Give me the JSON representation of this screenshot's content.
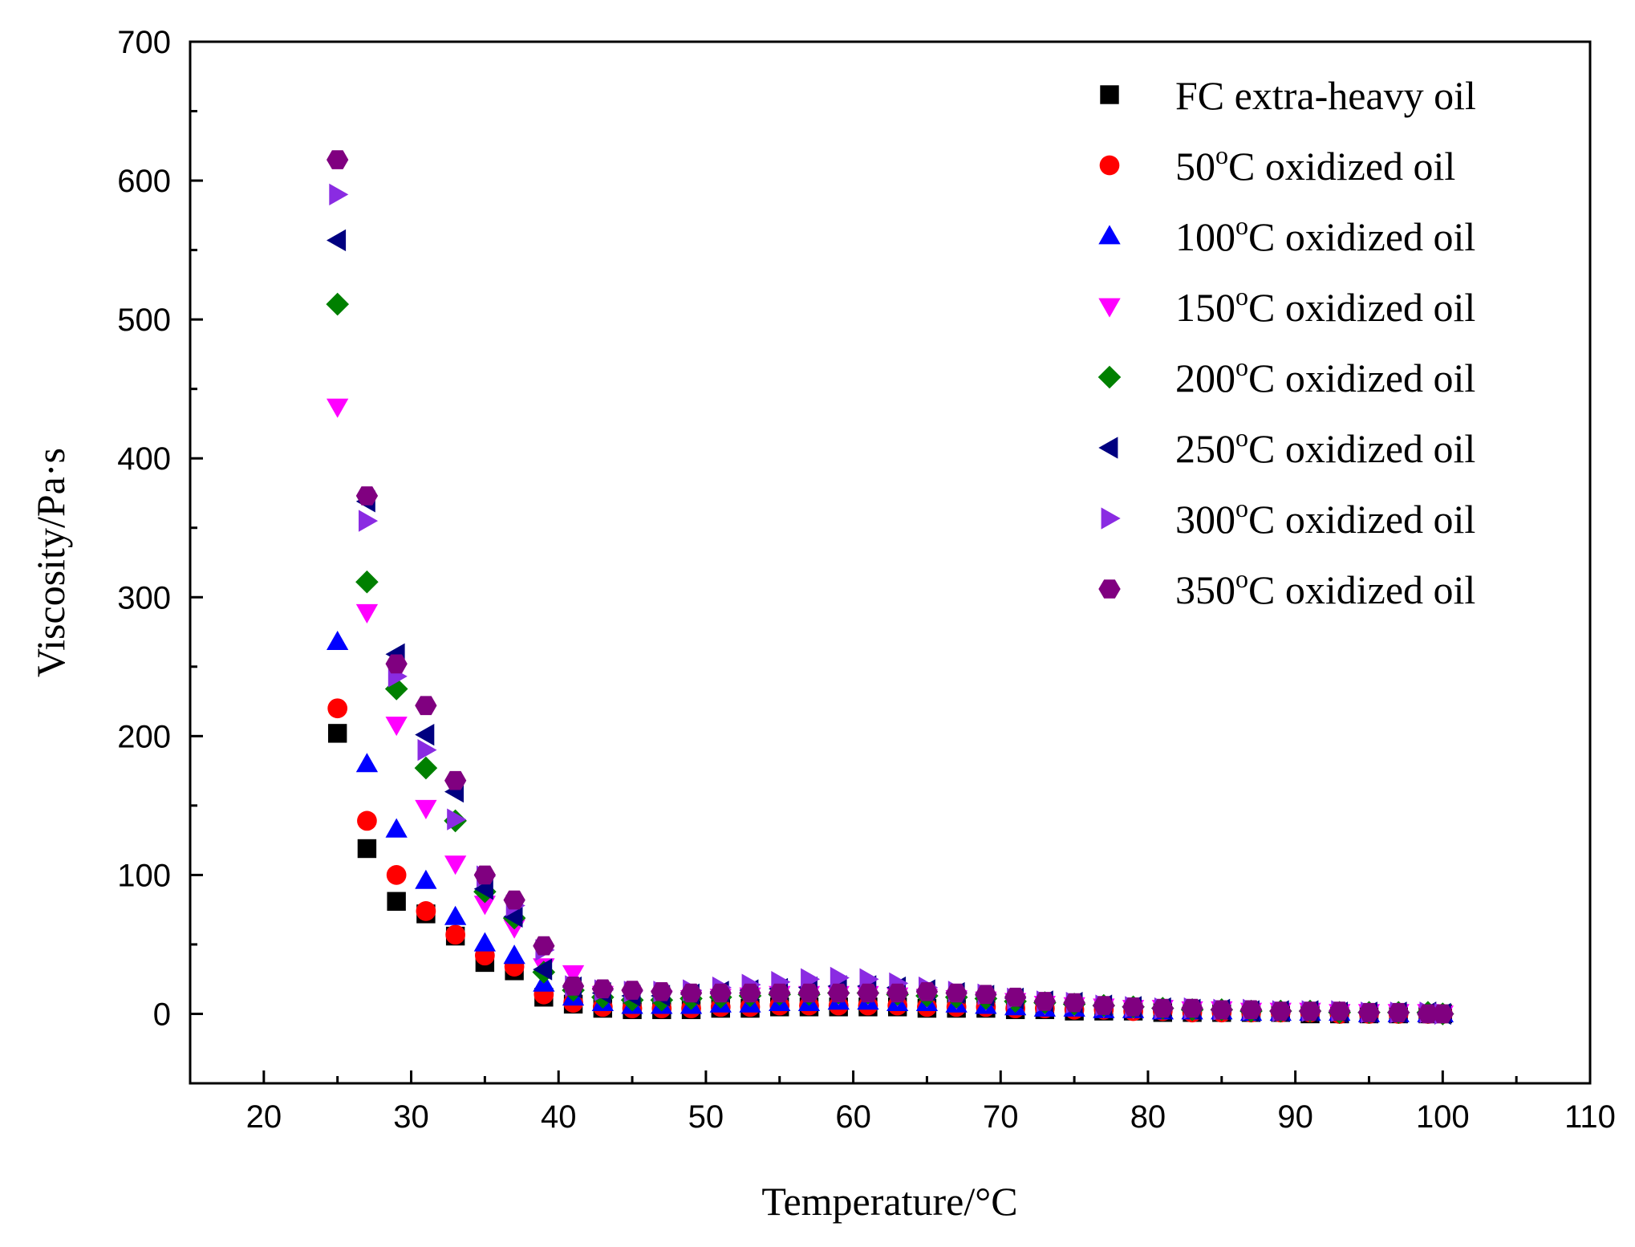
{
  "chart_data": {
    "type": "scatter",
    "xlabel": "Temperature/°C",
    "ylabel": "Viscosity/Pa·s",
    "xlim": [
      15,
      110
    ],
    "ylim": [
      -50,
      700
    ],
    "xticks": [
      20,
      30,
      40,
      50,
      60,
      70,
      80,
      90,
      100,
      110
    ],
    "yticks": [
      0,
      100,
      200,
      300,
      400,
      500,
      600,
      700
    ],
    "grid": false,
    "legend_position": "top-right",
    "x": [
      25,
      27,
      29,
      31,
      33,
      35,
      37,
      39,
      41,
      43,
      45,
      47,
      49,
      51,
      53,
      55,
      57,
      59,
      61,
      63,
      65,
      67,
      69,
      71,
      73,
      75,
      77,
      79,
      81,
      83,
      85,
      87,
      89,
      91,
      93,
      95,
      97,
      99,
      100
    ],
    "series": [
      {
        "name": "FC extra-heavy oil",
        "marker": "square",
        "color": "#000000",
        "values": [
          202,
          119,
          81,
          72,
          56,
          37,
          31,
          12,
          7,
          4,
          3,
          3,
          3,
          4,
          4,
          5,
          5,
          5,
          5,
          5,
          4,
          4,
          4,
          3,
          3,
          2,
          2,
          2,
          1,
          1,
          1,
          1,
          1,
          0,
          0,
          0,
          0,
          0,
          0
        ]
      },
      {
        "name": "50",
        "sup": "o",
        "suffix": "C oxidized oil",
        "marker": "circle",
        "color": "#ff0000",
        "values": [
          220,
          139,
          100,
          74,
          57,
          42,
          34,
          14,
          8,
          5,
          4,
          4,
          4,
          5,
          5,
          6,
          6,
          6,
          6,
          6,
          5,
          5,
          5,
          4,
          4,
          3,
          3,
          2,
          2,
          1,
          1,
          1,
          1,
          1,
          0,
          0,
          0,
          0,
          0
        ]
      },
      {
        "name": "100",
        "sup": "o",
        "suffix": "C oxidized oil",
        "marker": "triangle-up",
        "color": "#0000ff",
        "values": [
          268,
          180,
          133,
          96,
          70,
          51,
          42,
          22,
          12,
          8,
          6,
          6,
          6,
          7,
          7,
          8,
          8,
          9,
          9,
          8,
          8,
          7,
          6,
          5,
          4,
          4,
          3,
          3,
          2,
          2,
          2,
          1,
          1,
          1,
          1,
          0,
          0,
          0,
          0
        ]
      },
      {
        "name": "150",
        "sup": "o",
        "suffix": "C oxidized oil",
        "marker": "triangle-down",
        "color": "#ff00ff",
        "values": [
          437,
          289,
          208,
          148,
          108,
          79,
          62,
          34,
          29,
          14,
          11,
          11,
          11,
          12,
          13,
          14,
          14,
          14,
          14,
          13,
          12,
          11,
          10,
          9,
          7,
          6,
          5,
          4,
          4,
          3,
          3,
          2,
          2,
          2,
          1,
          1,
          1,
          1,
          0
        ]
      },
      {
        "name": "200",
        "sup": "o",
        "suffix": "C oxidized oil",
        "marker": "diamond",
        "color": "#008000",
        "values": [
          511,
          311,
          234,
          177,
          139,
          88,
          69,
          30,
          17,
          12,
          10,
          10,
          11,
          12,
          13,
          14,
          14,
          15,
          15,
          14,
          13,
          12,
          11,
          9,
          8,
          7,
          6,
          5,
          4,
          3,
          3,
          2,
          2,
          2,
          1,
          1,
          1,
          1,
          0
        ]
      },
      {
        "name": "250",
        "sup": "o",
        "suffix": "C oxidized oil",
        "marker": "triangle-left",
        "color": "#000080",
        "values": [
          557,
          369,
          259,
          201,
          160,
          90,
          70,
          32,
          19,
          15,
          13,
          13,
          14,
          16,
          17,
          18,
          19,
          20,
          20,
          19,
          17,
          15,
          13,
          11,
          9,
          8,
          6,
          5,
          4,
          3,
          3,
          2,
          2,
          2,
          1,
          1,
          1,
          1,
          0
        ]
      },
      {
        "name": "300",
        "sup": "o",
        "suffix": "C oxidized oil",
        "marker": "triangle-right",
        "color": "#8a2be2",
        "values": [
          590,
          355,
          243,
          190,
          140,
          99,
          78,
          46,
          20,
          17,
          16,
          16,
          17,
          19,
          21,
          23,
          25,
          26,
          25,
          22,
          19,
          16,
          14,
          11,
          9,
          8,
          6,
          5,
          4,
          4,
          3,
          3,
          2,
          2,
          2,
          1,
          1,
          1,
          0
        ]
      },
      {
        "name": "350",
        "sup": "o",
        "suffix": "C oxidized oil",
        "marker": "hexagon",
        "color": "#800080",
        "values": [
          615,
          373,
          252,
          222,
          168,
          100,
          82,
          49,
          20,
          18,
          17,
          16,
          15,
          15,
          15,
          15,
          15,
          15,
          15,
          15,
          16,
          15,
          14,
          12,
          9,
          8,
          6,
          5,
          4,
          4,
          3,
          3,
          2,
          2,
          2,
          1,
          1,
          0,
          0
        ]
      }
    ]
  }
}
